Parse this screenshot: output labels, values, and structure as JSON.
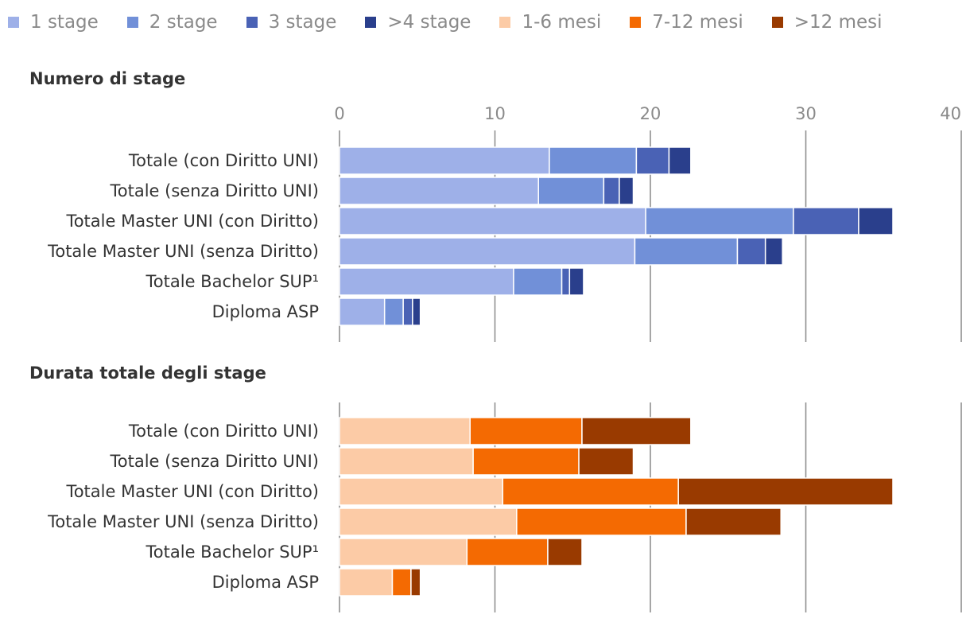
{
  "legend": [
    {
      "label": "1 stage",
      "color": "#9eb0e8"
    },
    {
      "label": "2 stage",
      "color": "#7190d8"
    },
    {
      "label": "3 stage",
      "color": "#4a62b5"
    },
    {
      "label": ">4 stage",
      "color": "#2a3f8c"
    },
    {
      "label": "1-6 mesi",
      "color": "#fccba6"
    },
    {
      "label": "7-12 mesi",
      "color": "#f46a02"
    },
    {
      "label": ">12 mesi",
      "color": "#993a00"
    }
  ],
  "chart_data": [
    {
      "type": "bar",
      "orientation": "horizontal",
      "stacked": true,
      "title": "Numero di stage",
      "categories": [
        "Totale (con Diritto UNI)",
        "Totale (senza Diritto UNI)",
        "Totale Master UNI (con Diritto)",
        "Totale Master UNI (senza Diritto)",
        "Totale Bachelor SUP¹",
        "Diploma ASP"
      ],
      "xlim": [
        0,
        40
      ],
      "ticks": [
        0,
        10,
        20,
        30,
        40
      ],
      "grid": true,
      "series": [
        {
          "name": "1 stage",
          "color": "#9eb0e8",
          "values": [
            13.5,
            12.8,
            19.7,
            19.0,
            11.2,
            2.9
          ]
        },
        {
          "name": "2 stage",
          "color": "#7190d8",
          "values": [
            5.6,
            4.2,
            9.5,
            6.6,
            3.1,
            1.2
          ]
        },
        {
          "name": "3 stage",
          "color": "#4a62b5",
          "values": [
            2.1,
            1.0,
            4.2,
            1.8,
            0.5,
            0.6
          ]
        },
        {
          "name": ">4 stage",
          "color": "#2a3f8c",
          "values": [
            1.4,
            0.9,
            2.2,
            1.1,
            0.9,
            0.5
          ]
        }
      ]
    },
    {
      "type": "bar",
      "orientation": "horizontal",
      "stacked": true,
      "title": "Durata totale degli stage",
      "categories": [
        "Totale (con Diritto UNI)",
        "Totale (senza Diritto UNI)",
        "Totale Master UNI (con Diritto)",
        "Totale Master UNI (senza Diritto)",
        "Totale Bachelor SUP¹",
        "Diploma ASP"
      ],
      "xlim": [
        0,
        40
      ],
      "ticks": [
        0,
        10,
        20,
        30,
        40
      ],
      "grid": true,
      "series": [
        {
          "name": "1-6 mesi",
          "color": "#fccba6",
          "values": [
            8.4,
            8.6,
            10.5,
            11.4,
            8.2,
            3.4
          ]
        },
        {
          "name": "7-12 mesi",
          "color": "#f46a02",
          "values": [
            7.2,
            6.8,
            11.3,
            10.9,
            5.2,
            1.2
          ]
        },
        {
          "name": ">12 mesi",
          "color": "#993a00",
          "values": [
            7.0,
            3.5,
            13.8,
            6.1,
            2.2,
            0.6
          ]
        }
      ]
    }
  ]
}
